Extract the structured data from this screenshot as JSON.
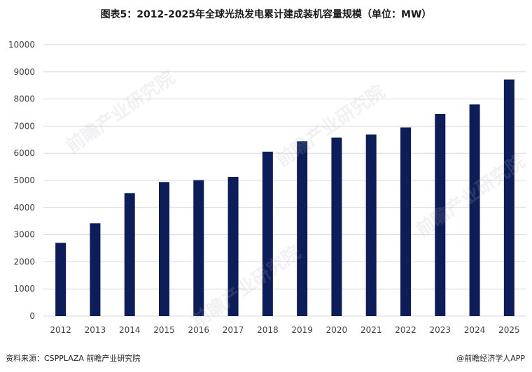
{
  "title": "图表5：2012-2025年全球光热发电累计建成装机容量规模（单位：MW）",
  "source": "资料来源：CSPPLAZA 前瞻产业研究院",
  "credit": "@前瞻经济学人APP",
  "watermark": "前瞻产业研究院",
  "colors": {
    "bar": "#0d1d5a",
    "grid": "#d9d9d9",
    "axis_text": "#404040"
  },
  "chart_data": {
    "type": "bar",
    "title": "图表5：2012-2025年全球光热发电累计建成装机容量规模（单位：MW）",
    "xlabel": "",
    "ylabel": "",
    "categories": [
      "2012",
      "2013",
      "2014",
      "2015",
      "2016",
      "2017",
      "2018",
      "2019",
      "2020",
      "2021",
      "2022",
      "2023",
      "2024",
      "2025"
    ],
    "values": [
      2700,
      3420,
      4530,
      4940,
      5010,
      5130,
      6060,
      6440,
      6580,
      6690,
      6950,
      7450,
      7800,
      8720
    ],
    "ylim": [
      0,
      10000
    ],
    "yticks": [
      "0",
      "1000",
      "2000",
      "3000",
      "4000",
      "5000",
      "6000",
      "7000",
      "8000",
      "9000",
      "10000"
    ],
    "grid": true,
    "legend": "none"
  }
}
